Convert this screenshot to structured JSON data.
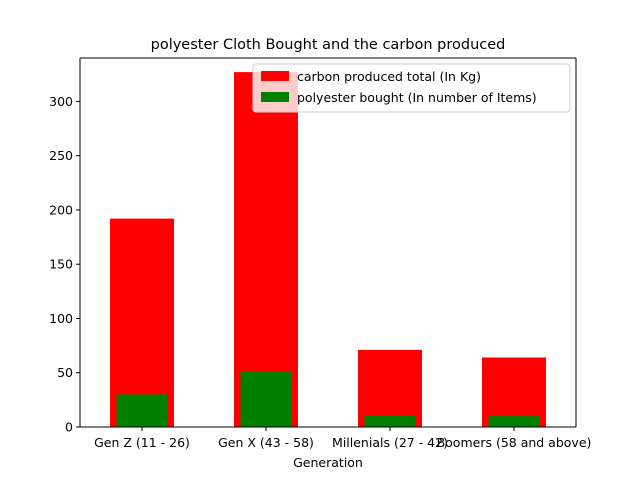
{
  "chart_data": {
    "type": "bar",
    "title": "polyester Cloth Bought and the carbon produced",
    "xlabel": "Generation",
    "ylabel": "",
    "categories": [
      "Gen Z (11 - 26)",
      "Gen X (43 - 58)",
      "Millenials (27 - 42)",
      "Boomers (58 and above)"
    ],
    "series": [
      {
        "name": "carbon produced total (In Kg)",
        "color": "#ff0000",
        "values": [
          192,
          327,
          71,
          64
        ]
      },
      {
        "name": "polyester bought (In number of Items)",
        "color": "#008000",
        "values": [
          30,
          51,
          11,
          10
        ]
      }
    ],
    "ylim": [
      0,
      340
    ],
    "yticks": [
      0,
      50,
      100,
      150,
      200,
      250,
      300
    ],
    "grid": false,
    "legend": "top-right"
  }
}
